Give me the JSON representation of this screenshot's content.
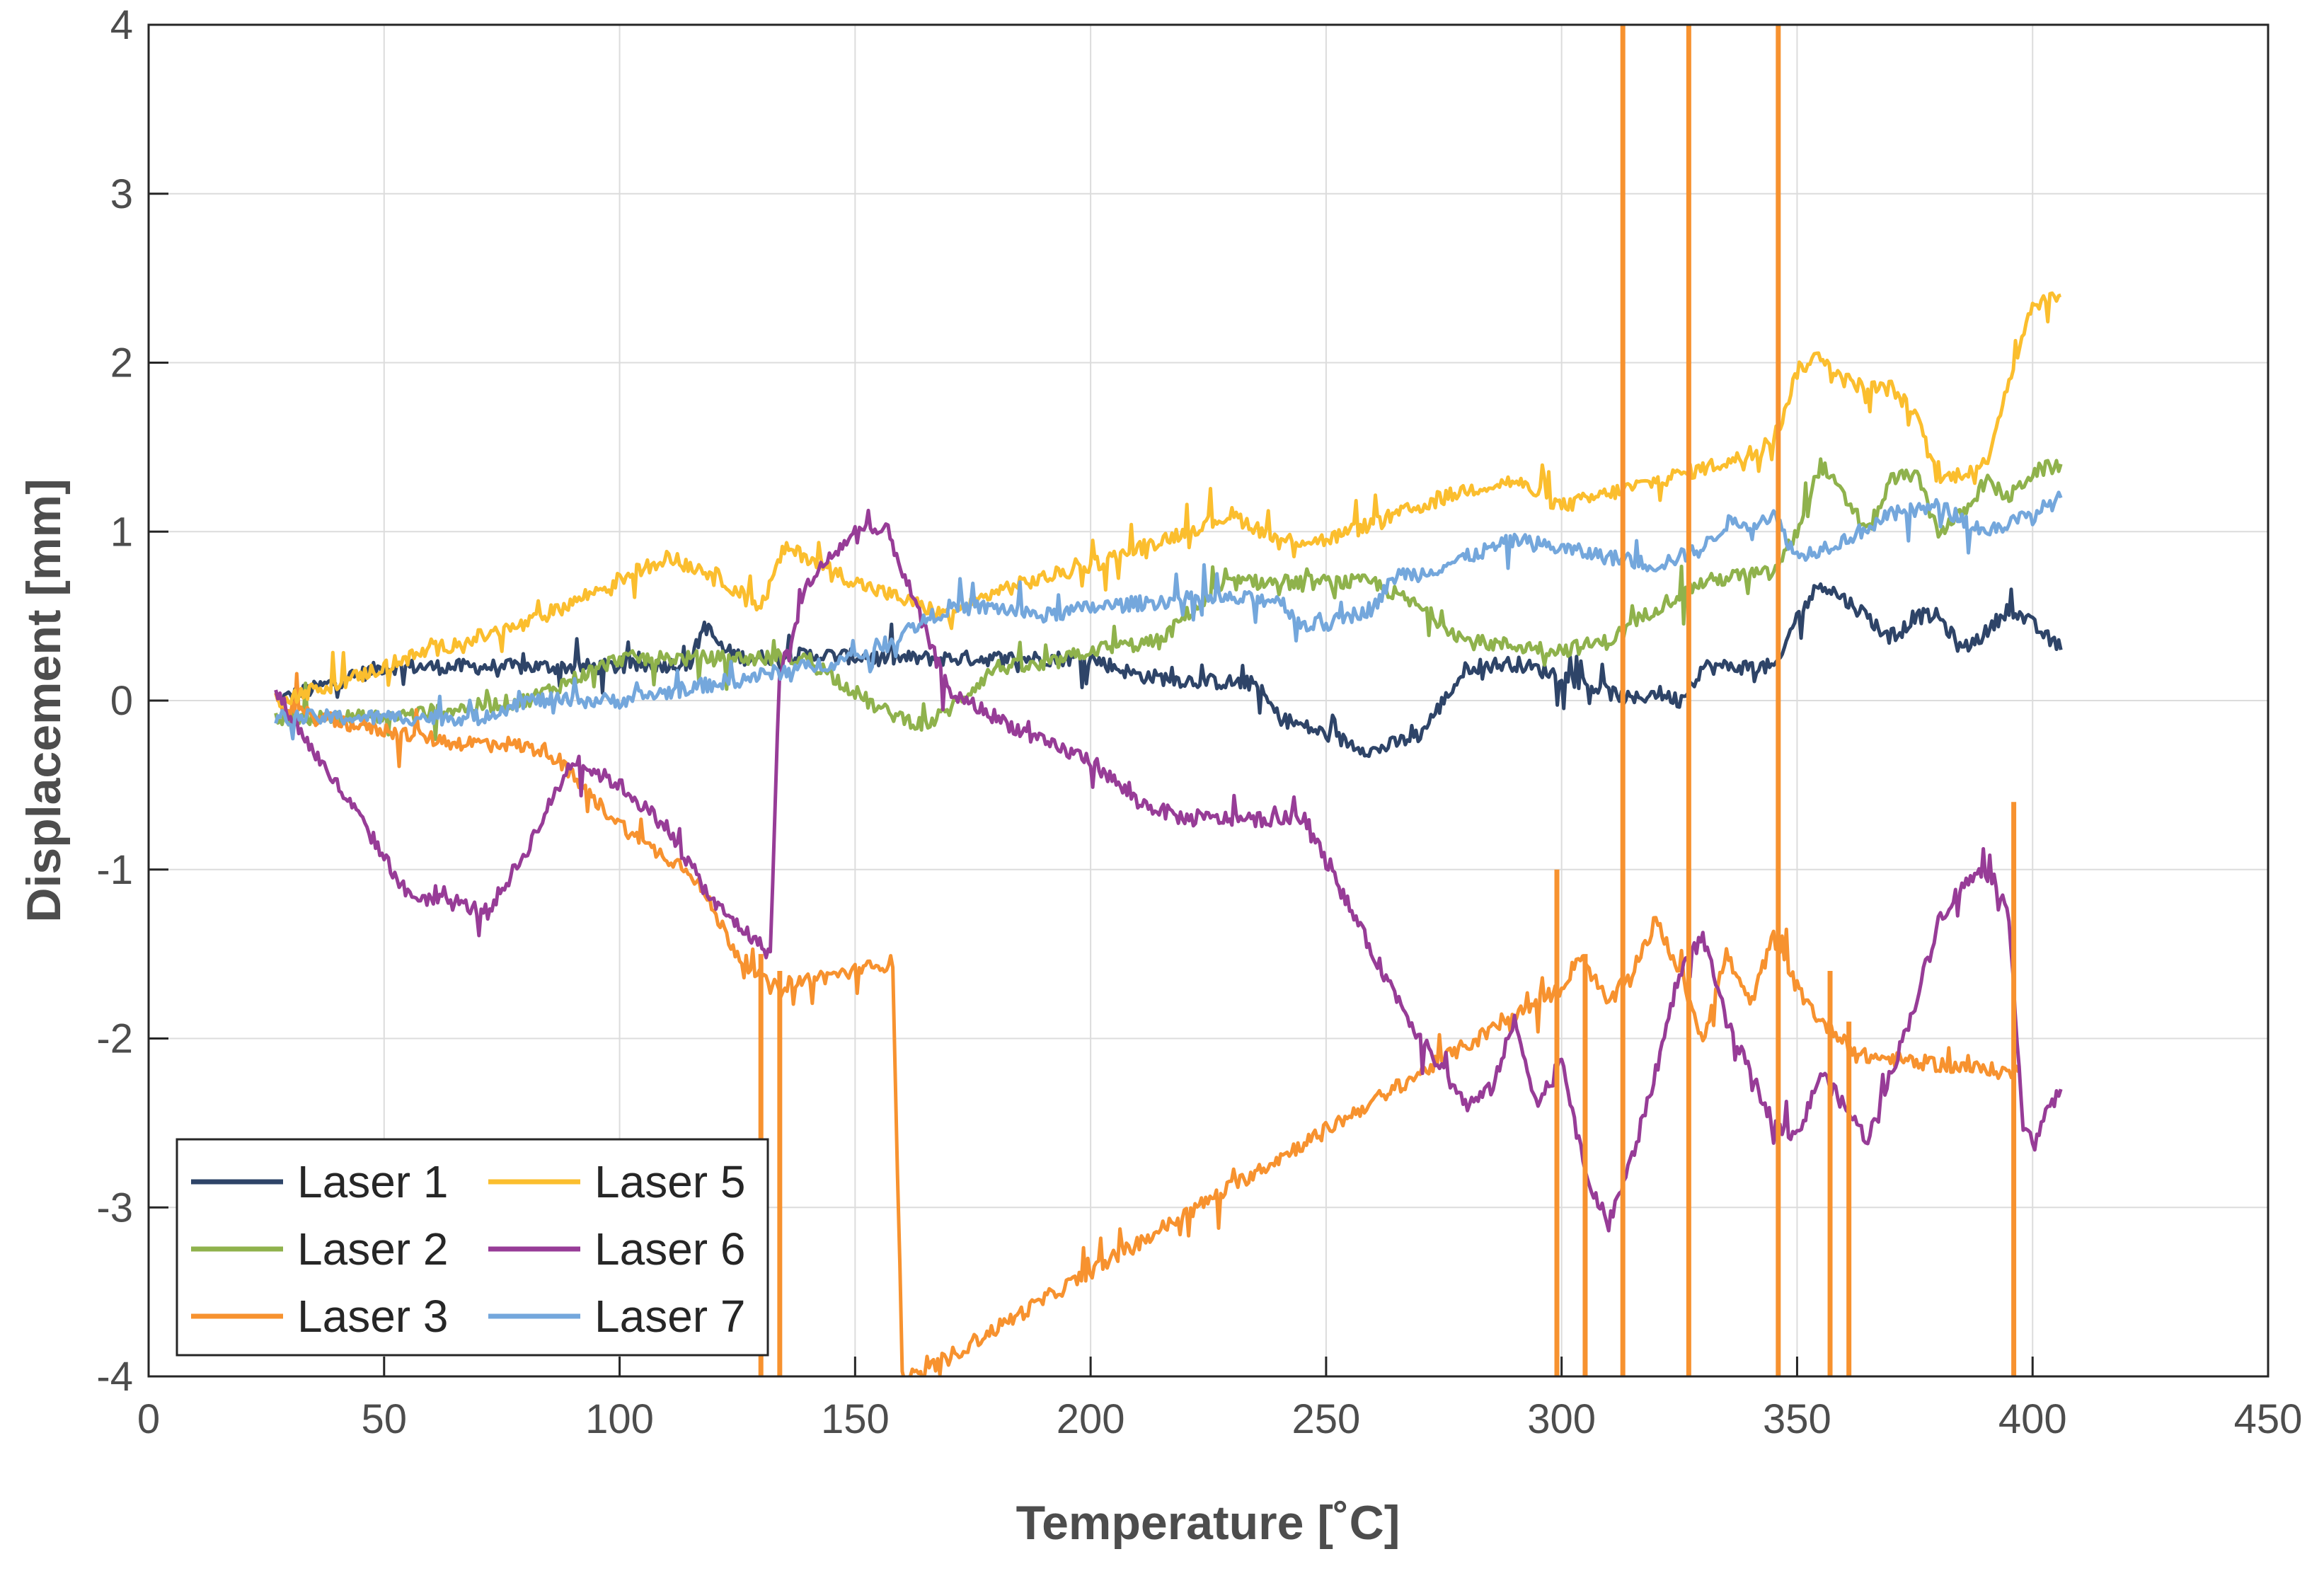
{
  "chart_data": {
    "type": "line",
    "title": "",
    "xlabel": "Temperature [˚C]",
    "ylabel": "Displacement [mm]",
    "xlim": [
      0,
      450
    ],
    "ylim": [
      -4,
      4
    ],
    "xticks": [
      0,
      50,
      100,
      150,
      200,
      250,
      300,
      350,
      400,
      450
    ],
    "yticks": [
      -4,
      -3,
      -2,
      -1,
      0,
      1,
      2,
      3,
      4
    ],
    "xtick_labels": [
      "0",
      "50",
      "100",
      "150",
      "200",
      "250",
      "300",
      "350",
      "400",
      "450"
    ],
    "ytick_labels": [
      "-4",
      "-3",
      "-2",
      "-1",
      "0",
      "1",
      "2",
      "3",
      "4"
    ],
    "grid": true,
    "legend_position": "bottom-left",
    "series": [
      {
        "name": "Laser 1",
        "color": "#2e4468",
        "x": [
          27,
          50,
          80,
          100,
          115,
          118,
          122,
          127,
          140,
          160,
          180,
          200,
          210,
          220,
          235,
          240,
          245,
          250,
          255,
          260,
          265,
          270,
          275,
          280,
          290,
          300,
          305,
          310,
          315,
          320,
          325,
          330,
          340,
          346,
          349,
          355,
          360,
          365,
          370,
          375,
          380,
          385,
          390,
          395,
          400,
          406
        ],
        "y": [
          0.0,
          0.2,
          0.2,
          0.2,
          0.22,
          0.45,
          0.3,
          0.25,
          0.27,
          0.25,
          0.25,
          0.25,
          0.15,
          0.12,
          0.1,
          -0.1,
          -0.15,
          -0.2,
          -0.25,
          -0.3,
          -0.25,
          -0.2,
          0.0,
          0.2,
          0.22,
          0.15,
          0.1,
          0.05,
          0.0,
          0.05,
          0.0,
          0.2,
          0.2,
          0.2,
          0.45,
          0.7,
          0.6,
          0.5,
          0.35,
          0.5,
          0.5,
          0.3,
          0.4,
          0.55,
          0.45,
          0.3
        ]
      },
      {
        "name": "Laser 2",
        "color": "#8fb24c",
        "x": [
          27,
          50,
          80,
          100,
          120,
          140,
          155,
          160,
          165,
          170,
          180,
          190,
          200,
          215,
          220,
          230,
          240,
          260,
          270,
          280,
          300,
          310,
          320,
          330,
          340,
          345,
          350,
          355,
          360,
          365,
          370,
          375,
          380,
          385,
          390,
          395,
          400,
          406
        ],
        "y": [
          -0.1,
          -0.1,
          0.0,
          0.25,
          0.25,
          0.25,
          -0.05,
          -0.1,
          -0.15,
          -0.05,
          0.2,
          0.2,
          0.3,
          0.35,
          0.5,
          0.7,
          0.7,
          0.7,
          0.55,
          0.35,
          0.3,
          0.35,
          0.55,
          0.7,
          0.75,
          0.75,
          1.0,
          1.4,
          1.2,
          1.0,
          1.3,
          1.35,
          1.0,
          1.1,
          1.3,
          1.2,
          1.35,
          1.4
        ]
      },
      {
        "name": "Laser 3",
        "color": "#f7922f",
        "x": [
          27,
          35,
          45,
          55,
          65,
          75,
          85,
          95,
          105,
          115,
          125,
          132,
          140,
          150,
          158,
          160,
          163,
          300,
          304,
          310,
          315,
          320,
          325,
          330,
          335,
          340,
          345,
          350,
          355,
          360,
          363,
          395,
          397
        ],
        "y": [
          0.0,
          -0.1,
          -0.15,
          -0.2,
          -0.25,
          -0.25,
          -0.3,
          -0.6,
          -0.85,
          -1.0,
          -1.5,
          -1.7,
          -1.65,
          -1.6,
          -1.55,
          -4.0,
          -4.0,
          -1.7,
          -1.5,
          -1.8,
          -1.6,
          -1.3,
          -1.6,
          -2.0,
          -1.5,
          -1.8,
          -1.4,
          -1.7,
          -1.9,
          -2.0,
          -2.1,
          -2.2,
          -2.2
        ]
      },
      {
        "name": "Laser 5",
        "color": "#fbbe2e",
        "x": [
          27,
          40,
          60,
          80,
          95,
          110,
          120,
          130,
          135,
          140,
          150,
          160,
          170,
          180,
          200,
          220,
          230,
          240,
          250,
          260,
          270,
          280,
          290,
          300,
          320,
          340,
          346,
          350,
          355,
          360,
          365,
          370,
          375,
          380,
          385,
          390,
          395,
          400,
          406
        ],
        "y": [
          0.0,
          0.1,
          0.3,
          0.45,
          0.65,
          0.85,
          0.75,
          0.55,
          0.9,
          0.85,
          0.7,
          0.6,
          0.5,
          0.65,
          0.8,
          1.0,
          1.1,
          0.95,
          0.95,
          1.05,
          1.15,
          1.25,
          1.3,
          1.15,
          1.3,
          1.45,
          1.6,
          1.95,
          2.05,
          1.9,
          1.85,
          1.85,
          1.7,
          1.3,
          1.35,
          1.4,
          1.9,
          2.35,
          2.4
        ]
      },
      {
        "name": "Laser 6",
        "color": "#973c97",
        "x": [
          27,
          35,
          45,
          55,
          65,
          72,
          80,
          90,
          100,
          110,
          120,
          128,
          132,
          134,
          136,
          140,
          150,
          157,
          165,
          170,
          180,
          190,
          200,
          210,
          220,
          230,
          240,
          245,
          250,
          260,
          270,
          280,
          285,
          290,
          295,
          300,
          305,
          310,
          315,
          320,
          325,
          330,
          335,
          340,
          345,
          350,
          355,
          360,
          365,
          370,
          375,
          380,
          385,
          390,
          395,
          398,
          400,
          406
        ],
        "y": [
          0.05,
          -0.3,
          -0.7,
          -1.15,
          -1.2,
          -1.25,
          -0.9,
          -0.35,
          -0.5,
          -0.75,
          -1.2,
          -1.4,
          -1.5,
          0.2,
          0.3,
          0.7,
          1.0,
          1.0,
          0.4,
          0.05,
          -0.1,
          -0.25,
          -0.35,
          -0.6,
          -0.7,
          -0.7,
          -0.7,
          -0.7,
          -0.95,
          -1.5,
          -2.0,
          -2.4,
          -2.3,
          -1.9,
          -2.4,
          -2.1,
          -2.8,
          -3.1,
          -2.7,
          -2.2,
          -1.6,
          -1.4,
          -1.9,
          -2.2,
          -2.5,
          -2.6,
          -2.2,
          -2.4,
          -2.6,
          -2.2,
          -1.8,
          -1.3,
          -1.1,
          -1.0,
          -1.3,
          -2.5,
          -2.6,
          -2.3
        ]
      },
      {
        "name": "Laser 7",
        "color": "#74a7dc",
        "x": [
          27,
          50,
          70,
          80,
          100,
          120,
          130,
          140,
          150,
          160,
          170,
          180,
          190,
          200,
          220,
          240,
          245,
          250,
          255,
          260,
          265,
          270,
          280,
          290,
          300,
          310,
          320,
          330,
          335,
          340,
          345,
          350,
          355,
          360,
          370,
          380,
          390,
          400,
          406
        ],
        "y": [
          -0.1,
          -0.1,
          -0.1,
          0.0,
          0.0,
          0.1,
          0.15,
          0.2,
          0.25,
          0.4,
          0.55,
          0.55,
          0.5,
          0.55,
          0.6,
          0.6,
          0.45,
          0.45,
          0.5,
          0.55,
          0.75,
          0.75,
          0.85,
          0.95,
          0.9,
          0.85,
          0.8,
          0.9,
          1.05,
          1.05,
          1.1,
          0.85,
          0.9,
          0.95,
          1.1,
          1.15,
          1.0,
          1.1,
          1.2
        ]
      }
    ],
    "vertical_spikes": [
      {
        "series": "Laser 3",
        "x": 130,
        "from": -1.5,
        "to": -4.0
      },
      {
        "series": "Laser 3",
        "x": 134,
        "from": -1.6,
        "to": -4.0
      },
      {
        "series": "Laser 3",
        "x": 299,
        "from": -1.0,
        "to": -4.0
      },
      {
        "series": "Laser 3",
        "x": 305,
        "from": -1.5,
        "to": -4.0
      },
      {
        "series": "Laser 3",
        "x": 313,
        "from": -4.0,
        "to": 4.0
      },
      {
        "series": "Laser 3",
        "x": 327,
        "from": -4.0,
        "to": 4.0
      },
      {
        "series": "Laser 3",
        "x": 346,
        "from": -4.0,
        "to": 4.0
      },
      {
        "series": "Laser 3",
        "x": 357,
        "from": -1.6,
        "to": -4.0
      },
      {
        "series": "Laser 3",
        "x": 361,
        "from": -1.9,
        "to": -4.0
      },
      {
        "series": "Laser 3",
        "x": 396,
        "from": -0.6,
        "to": -4.0
      }
    ],
    "legend": {
      "columns": [
        [
          "Laser 1",
          "Laser 2",
          "Laser 3"
        ],
        [
          "Laser 5",
          "Laser 6",
          "Laser 7"
        ]
      ]
    }
  }
}
